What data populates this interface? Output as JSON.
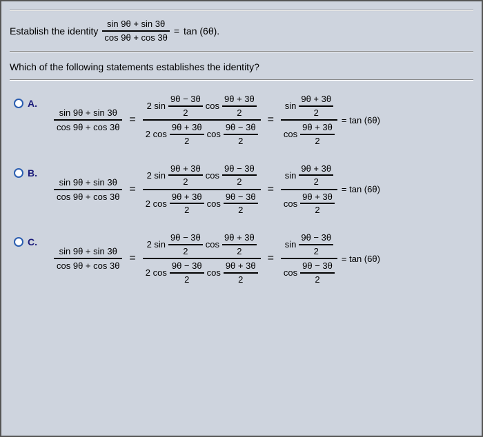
{
  "prompt": {
    "lead": "Establish the identity",
    "lhs_num": "sin 9θ + sin 3θ",
    "lhs_den": "cos 9θ + cos 3θ",
    "eq": "=",
    "rhs": "tan (6θ)."
  },
  "question": "Which of the following statements establishes the identity?",
  "options": [
    {
      "letter": "A.",
      "lhs_num": "sin 9θ + sin 3θ",
      "lhs_den": "cos 9θ + cos 3θ",
      "mid_num_coef": "2 sin",
      "mid_num_f1_n": "9θ − 3θ",
      "mid_num_f1_d": "2",
      "mid_num_op": "cos",
      "mid_num_f2_n": "9θ + 3θ",
      "mid_num_f2_d": "2",
      "mid_den_coef": "2 cos",
      "mid_den_f1_n": "9θ + 3θ",
      "mid_den_f1_d": "2",
      "mid_den_op": "cos",
      "mid_den_f2_n": "9θ − 3θ",
      "mid_den_f2_d": "2",
      "r_num_fn": "sin",
      "r_num_f_n": "9θ + 3θ",
      "r_num_f_d": "2",
      "r_den_fn": "cos",
      "r_den_f_n": "9θ + 3θ",
      "r_den_f_d": "2",
      "result": "= tan (6θ)"
    },
    {
      "letter": "B.",
      "lhs_num": "sin 9θ + sin 3θ",
      "lhs_den": "cos 9θ + cos 3θ",
      "mid_num_coef": "2 sin",
      "mid_num_f1_n": "9θ + 3θ",
      "mid_num_f1_d": "2",
      "mid_num_op": "cos",
      "mid_num_f2_n": "9θ − 3θ",
      "mid_num_f2_d": "2",
      "mid_den_coef": "2 cos",
      "mid_den_f1_n": "9θ + 3θ",
      "mid_den_f1_d": "2",
      "mid_den_op": "cos",
      "mid_den_f2_n": "9θ − 3θ",
      "mid_den_f2_d": "2",
      "r_num_fn": "sin",
      "r_num_f_n": "9θ + 3θ",
      "r_num_f_d": "2",
      "r_den_fn": "cos",
      "r_den_f_n": "9θ + 3θ",
      "r_den_f_d": "2",
      "result": "= tan (6θ)"
    },
    {
      "letter": "C.",
      "lhs_num": "sin 9θ + sin 3θ",
      "lhs_den": "cos 9θ + cos 3θ",
      "mid_num_coef": "2 sin",
      "mid_num_f1_n": "9θ − 3θ",
      "mid_num_f1_d": "2",
      "mid_num_op": "cos",
      "mid_num_f2_n": "9θ + 3θ",
      "mid_num_f2_d": "2",
      "mid_den_coef": "2 cos",
      "mid_den_f1_n": "9θ − 3θ",
      "mid_den_f1_d": "2",
      "mid_den_op": "cos",
      "mid_den_f2_n": "9θ + 3θ",
      "mid_den_f2_d": "2",
      "r_num_fn": "sin",
      "r_num_f_n": "9θ − 3θ",
      "r_num_f_d": "2",
      "r_den_fn": "cos",
      "r_den_f_n": "9θ − 3θ",
      "r_den_f_d": "2",
      "result": "= tan (6θ)"
    }
  ],
  "style": {
    "background": "#ced4de",
    "border": "#555555",
    "text": "#000000",
    "radio_border": "#2a5db0",
    "letter_color": "#1a1a7a",
    "rule_color": "#888888",
    "font_size_body": 14,
    "font_size_math": 13
  }
}
